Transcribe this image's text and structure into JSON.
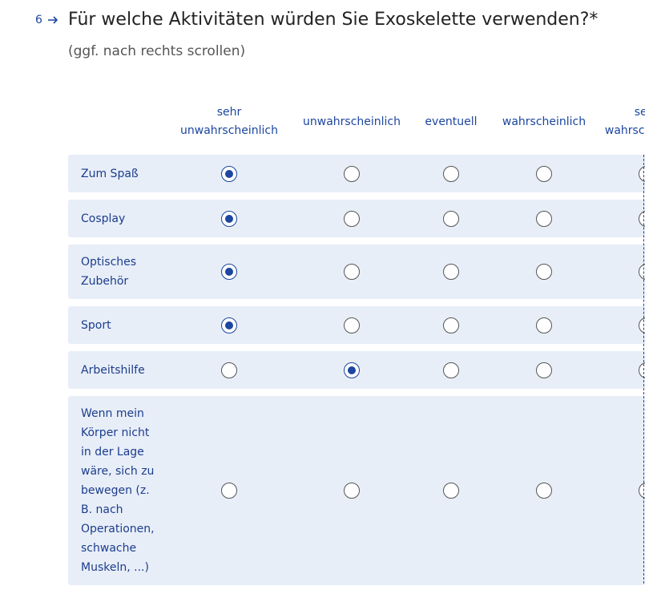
{
  "question": {
    "number": "6",
    "title": "Für welche Aktivitäten würden Sie Exoskelette verwenden?*",
    "subtitle": "(ggf. nach rechts scrollen)"
  },
  "matrix": {
    "columns": [
      "sehr unwahrscheinlich",
      "unwahrscheinlich",
      "eventuell",
      "wahrscheinlich",
      "sehr wahrscheinlich"
    ],
    "rows": [
      {
        "label": "Zum Spaß",
        "selected": 0
      },
      {
        "label": "Cosplay",
        "selected": 0
      },
      {
        "label": "Optisches Zubehör",
        "selected": 0
      },
      {
        "label": "Sport",
        "selected": 0
      },
      {
        "label": "Arbeitshilfe",
        "selected": 1
      },
      {
        "label": "Wenn mein Körper nicht in der Lage wäre, sich zu bewegen (z. B. nach Operationen, schwache Muskeln, ...)",
        "selected": null
      }
    ]
  }
}
